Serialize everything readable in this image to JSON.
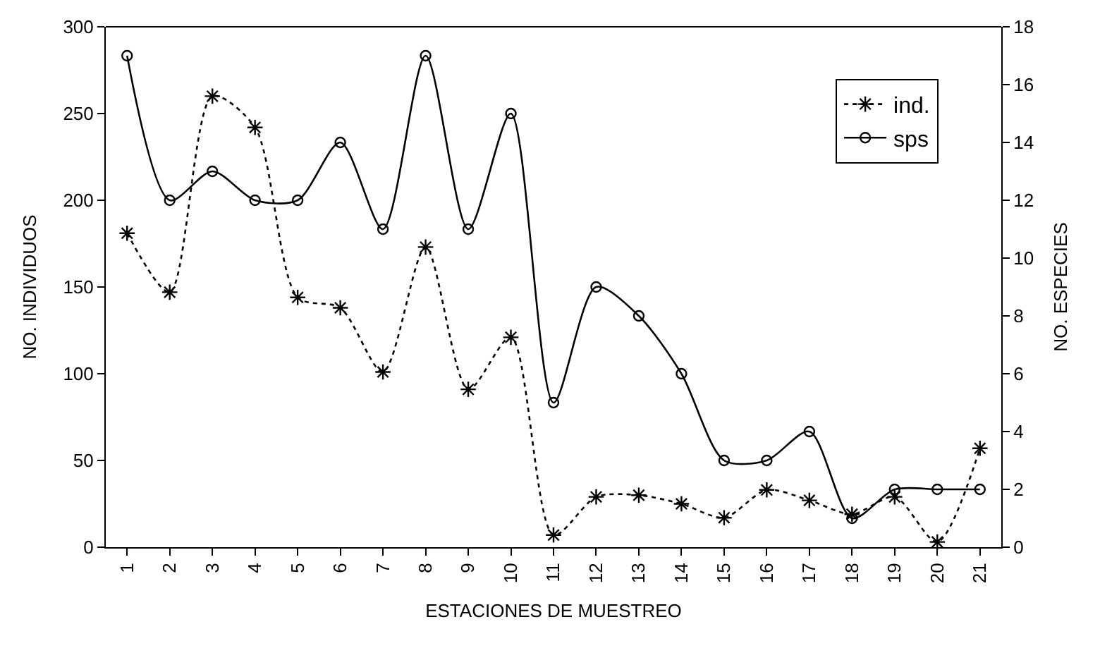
{
  "chart_data": {
    "type": "line",
    "xlabel": "ESTACIONES DE MUESTREO",
    "ylabel": "NO. INDIVIDUOS",
    "y2label": "NO. ESPECIES",
    "categories": [
      "1",
      "2",
      "3",
      "4",
      "5",
      "6",
      "7",
      "8",
      "9",
      "10",
      "11",
      "12",
      "13",
      "14",
      "15",
      "16",
      "17",
      "18",
      "19",
      "20",
      "21"
    ],
    "series": [
      {
        "name": "ind.",
        "color": "#000000",
        "marker": "cross",
        "line_style": "dotted",
        "values": [
          181,
          147,
          260,
          242,
          144,
          138,
          101,
          173,
          91,
          121,
          7,
          29,
          30,
          25,
          17,
          33,
          27,
          19,
          29,
          3,
          57
        ]
      },
      {
        "name": "sps",
        "color": "#000000",
        "marker": "circle",
        "line_style": "solid",
        "axis": "y2",
        "values": [
          17,
          12,
          13,
          12,
          12,
          14,
          11,
          17,
          11,
          15,
          5,
          9,
          8,
          6,
          3,
          3,
          4,
          1,
          2,
          2,
          2
        ]
      }
    ],
    "ylim": [
      0,
      300
    ],
    "yticks": [
      0,
      50,
      100,
      150,
      200,
      250,
      300
    ],
    "y2lim": [
      0,
      18
    ],
    "y2ticks": [
      0,
      2,
      4,
      6,
      8,
      10,
      12,
      14,
      16,
      18
    ],
    "legend": "top right"
  }
}
